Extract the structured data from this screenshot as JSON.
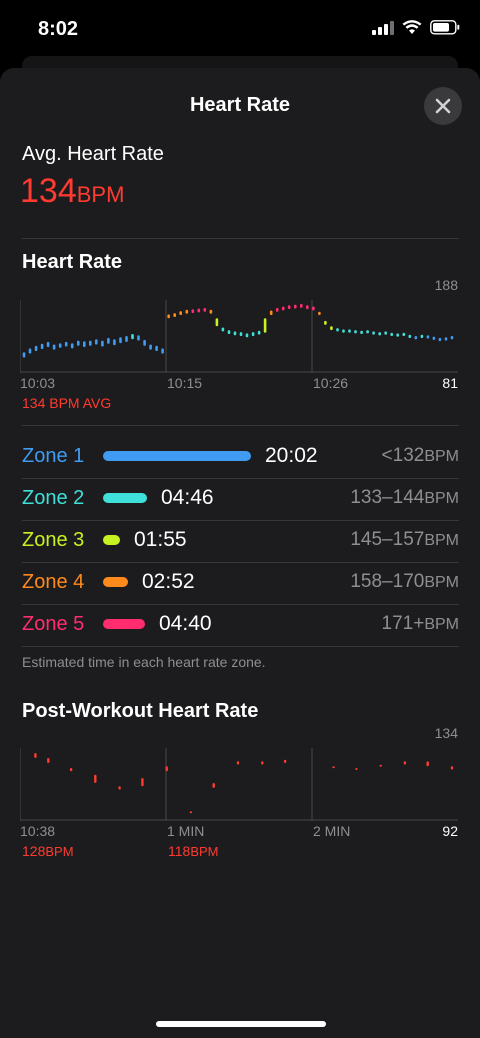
{
  "status_bar": {
    "time": "8:02"
  },
  "sheet": {
    "title": "Heart Rate"
  },
  "summary": {
    "avg_label": "Avg. Heart Rate",
    "avg_value": "134",
    "avg_unit": "BPM"
  },
  "heart_rate_chart": {
    "title": "Heart Rate",
    "y_max_label": "188",
    "y_min_label": "81",
    "x_labels": [
      "10:03",
      "10:15",
      "10:26"
    ],
    "avg_caption": "134 BPM AVG"
  },
  "zones": [
    {
      "name": "Zone 1",
      "time": "20:02",
      "range": "<132",
      "unit": "BPM",
      "color": "#3f9cf2",
      "fraction": 0.6
    },
    {
      "name": "Zone 2",
      "time": "04:46",
      "range": "133–144",
      "unit": "BPM",
      "color": "#3ee0d9",
      "fraction": 0.18
    },
    {
      "name": "Zone 3",
      "time": "01:55",
      "range": "145–157",
      "unit": "BPM",
      "color": "#c8f21f",
      "fraction": 0.07
    },
    {
      "name": "Zone 4",
      "time": "02:52",
      "range": "158–170",
      "unit": "BPM",
      "color": "#ff8a1c",
      "fraction": 0.1
    },
    {
      "name": "Zone 5",
      "time": "04:40",
      "range": "171+",
      "unit": "BPM",
      "color": "#ff2d70",
      "fraction": 0.17
    }
  ],
  "zones_note": "Estimated time in each heart rate zone.",
  "post_workout_chart": {
    "title": "Post-Workout Heart Rate",
    "y_max_label": "134",
    "y_min_label": "92",
    "x_labels": [
      "10:38",
      "1 MIN",
      "2 MIN"
    ],
    "callouts": [
      {
        "value": "128",
        "unit": "BPM"
      },
      {
        "value": "118",
        "unit": "BPM"
      }
    ]
  },
  "chart_data": [
    {
      "type": "bar",
      "title": "Heart Rate",
      "xlabel": "",
      "ylabel": "",
      "ylim": [
        81,
        188
      ],
      "x": [
        0,
        0.5,
        1,
        1.5,
        2,
        2.5,
        3,
        3.5,
        4,
        4.5,
        5,
        5.5,
        6,
        6.5,
        7,
        7.5,
        8,
        8.5,
        9,
        9.5,
        10,
        10.5,
        11,
        11.5,
        12,
        12.5,
        13,
        13.5,
        14,
        14.5,
        15,
        15.5,
        16,
        16.5,
        17,
        17.5,
        18,
        18.5,
        19,
        19.5,
        20,
        20.5,
        21,
        21.5,
        22,
        22.5,
        23,
        23.5,
        24,
        24.5,
        25,
        25.5,
        26,
        26.5,
        27,
        27.5,
        28,
        28.5,
        29,
        29.5,
        30,
        30.5,
        31,
        31.5,
        32,
        32.5,
        33,
        33.5,
        34,
        34.5,
        35,
        35.5
      ],
      "series": [
        {
          "low": [
            100,
            106,
            110,
            113,
            116,
            112,
            115,
            117,
            114,
            118,
            116,
            118,
            120,
            117,
            121,
            119,
            122,
            124,
            128,
            126,
            118,
            112,
            110,
            106,
            160,
            162,
            165,
            167,
            168,
            169,
            170,
            167,
            148,
            140,
            136,
            134,
            133,
            131,
            133,
            135,
            138,
            165,
            170,
            172,
            174,
            175,
            176,
            174,
            172,
            165,
            150,
            142,
            140,
            138,
            138,
            137,
            136,
            137,
            135,
            134,
            135,
            133,
            132,
            133,
            130,
            128,
            130,
            129,
            127,
            125,
            126,
            128
          ],
          "high": [
            108,
            114,
            118,
            121,
            124,
            120,
            122,
            124,
            122,
            126,
            125,
            126,
            128,
            126,
            130,
            128,
            131,
            133,
            136,
            134,
            127,
            120,
            118,
            114,
            166,
            168,
            171,
            173,
            174,
            175,
            176,
            173,
            160,
            146,
            142,
            140,
            139,
            137,
            139,
            141,
            160,
            172,
            176,
            178,
            180,
            181,
            182,
            180,
            178,
            170,
            156,
            148,
            145,
            143,
            143,
            142,
            141,
            142,
            140,
            139,
            140,
            138,
            137,
            138,
            135,
            133,
            135,
            134,
            132,
            130,
            131,
            133
          ]
        }
      ]
    },
    {
      "type": "bar",
      "title": "Post-Workout Heart Rate",
      "xlabel": "",
      "ylabel": "",
      "ylim": [
        92,
        134
      ],
      "x": [
        0.08,
        0.17,
        0.33,
        0.5,
        0.67,
        0.83,
        1.0,
        1.17,
        1.33,
        1.5,
        1.67,
        1.83,
        2.17,
        2.33,
        2.5,
        2.67,
        2.83,
        3.0
      ],
      "series": [
        {
          "low": [
            128,
            125,
            120,
            113,
            109,
            111,
            120,
            95,
            110,
            124,
            124,
            125,
            122,
            121,
            123,
            124,
            123,
            121
          ],
          "high": [
            131,
            128,
            122,
            118,
            111,
            116,
            123,
            96,
            113,
            126,
            126,
            127,
            123,
            122,
            124,
            126,
            126,
            123
          ]
        }
      ]
    }
  ]
}
